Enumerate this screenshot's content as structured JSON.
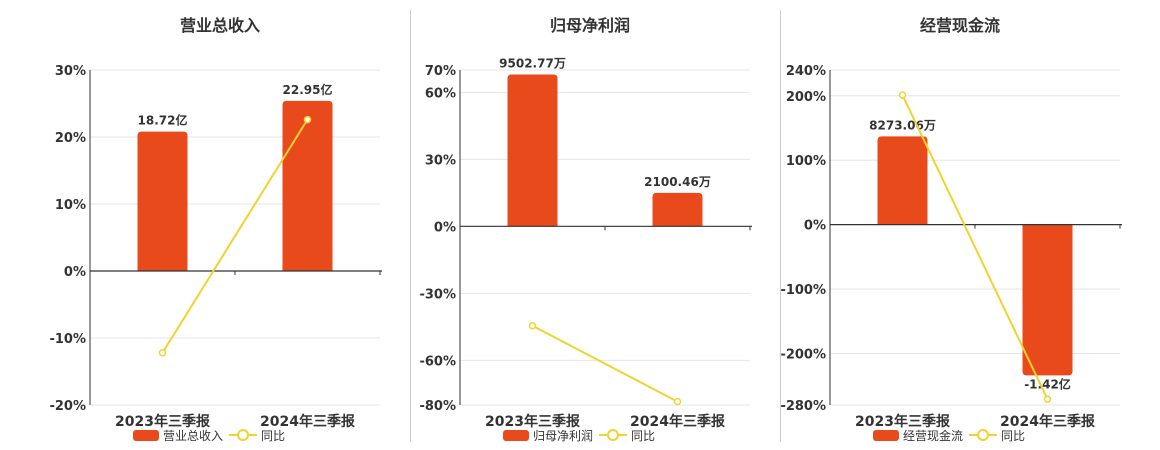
{
  "colors": {
    "bar": "#E84A1C",
    "line": "#F2D22E",
    "grid": "#E6E6E6",
    "axis": "#333333"
  },
  "chart_data": [
    {
      "type": "bar",
      "title": "营业总收入",
      "categories": [
        "2023年三季报",
        "2024年三季报"
      ],
      "ylim": [
        -20,
        30
      ],
      "yticks": [
        30,
        20,
        10,
        0,
        -10,
        -20
      ],
      "ytick_labels": [
        "30%",
        "20%",
        "10%",
        "0%",
        "-10%",
        "-20%"
      ],
      "series": [
        {
          "name": "营业总收入",
          "kind": "bar",
          "values": [
            20.8,
            25.4
          ],
          "labels": [
            "18.72亿",
            "22.95亿"
          ]
        },
        {
          "name": "同比",
          "kind": "line",
          "values": [
            -12.2,
            22.6
          ]
        }
      ],
      "grid": true,
      "legend": "bottom-center"
    },
    {
      "type": "bar",
      "title": "归母净利润",
      "categories": [
        "2023年三季报",
        "2024年三季报"
      ],
      "ylim": [
        -80,
        70
      ],
      "yticks": [
        70,
        60,
        30,
        0,
        -30,
        -60,
        -80
      ],
      "ytick_labels": [
        "70%",
        "60%",
        "30%",
        "0%",
        "-30%",
        "-60%",
        "-80%"
      ],
      "series": [
        {
          "name": "归母净利润",
          "kind": "bar",
          "values": [
            68,
            15
          ],
          "labels": [
            "9502.77万",
            "2100.46万"
          ]
        },
        {
          "name": "同比",
          "kind": "line",
          "values": [
            -44.5,
            -78.5
          ]
        }
      ],
      "grid": true,
      "legend": "bottom-center"
    },
    {
      "type": "bar",
      "title": "经营现金流",
      "categories": [
        "2023年三季报",
        "2024年三季报"
      ],
      "ylim": [
        -280,
        240
      ],
      "yticks": [
        240,
        200,
        100,
        0,
        -100,
        -200,
        -280
      ],
      "ytick_labels": [
        "240%",
        "200%",
        "100%",
        "0%",
        "-100%",
        "-200%",
        "-280%"
      ],
      "series": [
        {
          "name": "经营现金流",
          "kind": "bar",
          "values": [
            137,
            -234
          ],
          "labels": [
            "8273.06万",
            "-1.42亿"
          ]
        },
        {
          "name": "同比",
          "kind": "line",
          "values": [
            201,
            -271
          ]
        }
      ],
      "grid": true,
      "legend": "bottom-center"
    }
  ]
}
